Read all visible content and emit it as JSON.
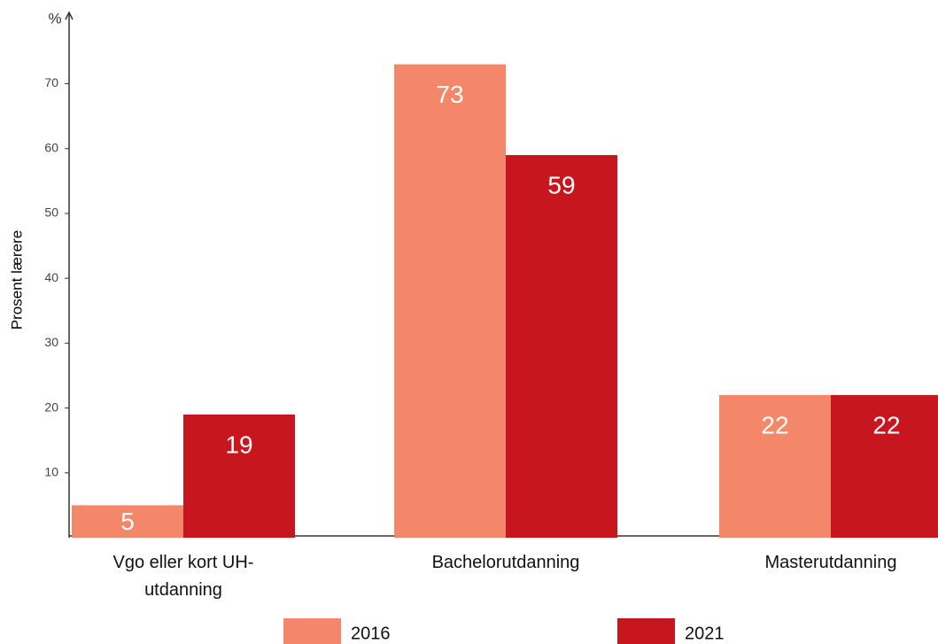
{
  "chart_data": {
    "type": "bar",
    "y_label": "Prosent lærere",
    "y_unit": "%",
    "categories": [
      "Vgo eller kort UH-utdanning",
      "Bachelorutdanning",
      "Masterutdanning"
    ],
    "series": [
      {
        "name": "2016",
        "color": "#f4876a",
        "values": [
          5,
          73,
          22
        ]
      },
      {
        "name": "2021",
        "color": "#c8161e",
        "values": [
          19,
          59,
          22
        ]
      }
    ],
    "ylim": [
      0,
      81
    ],
    "yticks": [
      10,
      20,
      30,
      40,
      50,
      60,
      70
    ],
    "legend": "bottom"
  }
}
